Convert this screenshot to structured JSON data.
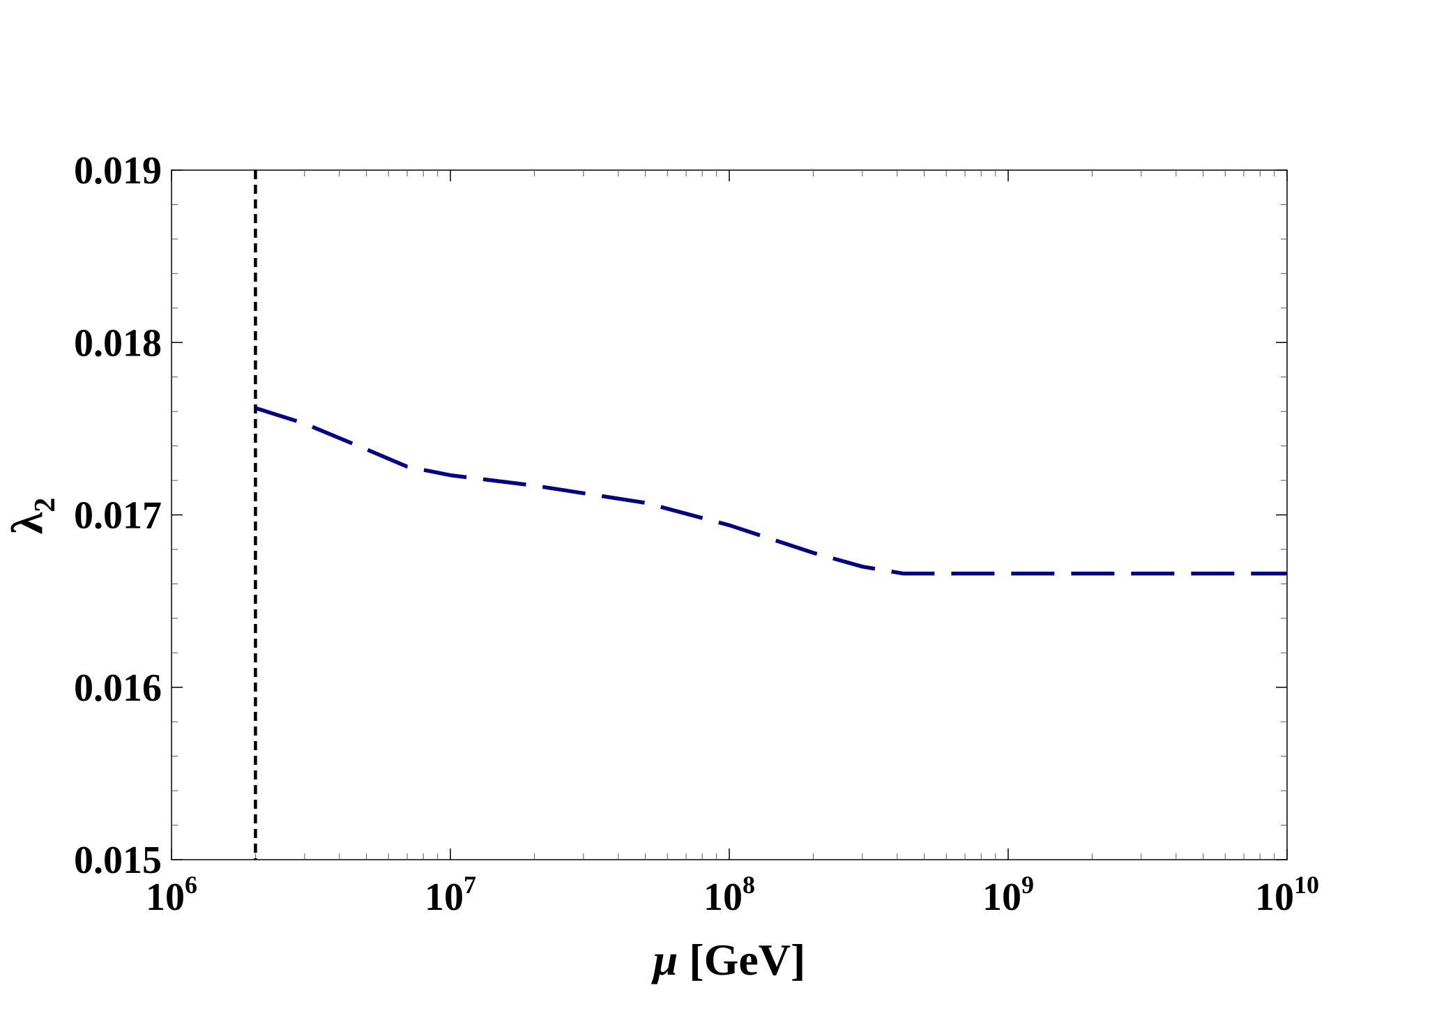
{
  "chart_data": {
    "type": "line",
    "title": "",
    "xlabel": {
      "symbol": "μ",
      "unit": "[GeV]"
    },
    "ylabel": {
      "symbol": "λ",
      "subscript": "2"
    },
    "x_scale": "log",
    "xlim": [
      1000000,
      10000000000
    ],
    "ylim": [
      0.015,
      0.019
    ],
    "x_ticks": [
      {
        "base": "10",
        "exp": "6",
        "value": 1000000
      },
      {
        "base": "10",
        "exp": "7",
        "value": 10000000
      },
      {
        "base": "10",
        "exp": "8",
        "value": 100000000
      },
      {
        "base": "10",
        "exp": "9",
        "value": 1000000000
      },
      {
        "base": "10",
        "exp": "10",
        "value": 10000000000
      }
    ],
    "y_ticks": [
      "0.015",
      "0.016",
      "0.017",
      "0.018",
      "0.019"
    ],
    "grid": false,
    "legend": "none",
    "series": [
      {
        "style": "dashed",
        "color": "#00008B",
        "x": [
          2000000,
          3000000,
          5000000,
          7000000,
          10000000,
          20000000,
          50000000,
          100000000,
          200000000,
          300000000,
          420000000,
          1000000000,
          10000000000
        ],
        "y": [
          0.01762,
          0.01753,
          0.01738,
          0.01728,
          0.01723,
          0.01717,
          0.01707,
          0.01694,
          0.01678,
          0.0167,
          0.01666,
          0.01666,
          0.01666
        ]
      }
    ],
    "vlines": [
      {
        "x": 2000000,
        "style": "dashed",
        "color": "#000000"
      }
    ]
  }
}
